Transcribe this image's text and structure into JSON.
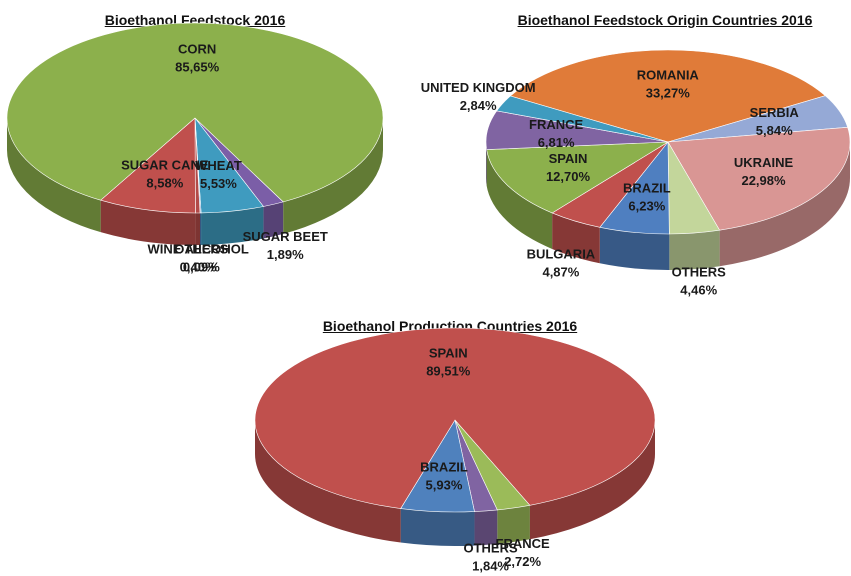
{
  "chart_data": [
    {
      "type": "pie",
      "title": "Bioethanol Feedstock 2016",
      "categories": [
        "SUGAR BEET",
        "WHEAT",
        "OTHERS",
        "WINE ALCOHOL",
        "SUGAR CANE",
        "CORN"
      ],
      "values": [
        1.89,
        5.53,
        0.09,
        0.4,
        8.58,
        85.65
      ],
      "value_labels": [
        "1,89%",
        "5,53%",
        "0,09%",
        "0,40%",
        "8,58%",
        "85,65%"
      ],
      "colors": [
        "#7b5ea7",
        "#3f9bbf",
        "#4a79b8",
        "#b24a48",
        "#c0504d",
        "#8cb04c"
      ]
    },
    {
      "type": "pie",
      "title": "Bioethanol Feedstock Origin Countries 2016",
      "categories": [
        "ROMANIA",
        "SERBIA",
        "UKRAINE",
        "OTHERS",
        "BRAZIL",
        "BULGARIA",
        "SPAIN",
        "FRANCE",
        "UNITED KINGDOM"
      ],
      "values": [
        33.27,
        5.84,
        22.98,
        4.46,
        6.23,
        4.87,
        12.7,
        6.81,
        2.84
      ],
      "value_labels": [
        "33,27%",
        "5,84%",
        "22,98%",
        "4,46%",
        "6,23%",
        "4,87%",
        "12,70%",
        "6,81%",
        "2,84%"
      ],
      "colors": [
        "#e07b39",
        "#95a9d6",
        "#d99694",
        "#c3d69b",
        "#4f7fc0",
        "#c0504d",
        "#8cb04c",
        "#8064a2",
        "#3f9bbf"
      ]
    },
    {
      "type": "pie",
      "title": "Bioethanol Production Countries 2016",
      "categories": [
        "FRANCE",
        "OTHERS",
        "BRAZIL",
        "SPAIN"
      ],
      "values": [
        2.72,
        1.84,
        5.93,
        89.51
      ],
      "value_labels": [
        "2,72%",
        "1,84%",
        "5,93%",
        "89,51%"
      ],
      "colors": [
        "#9bbb59",
        "#8064a2",
        "#4f81bd",
        "#c0504d"
      ]
    }
  ]
}
